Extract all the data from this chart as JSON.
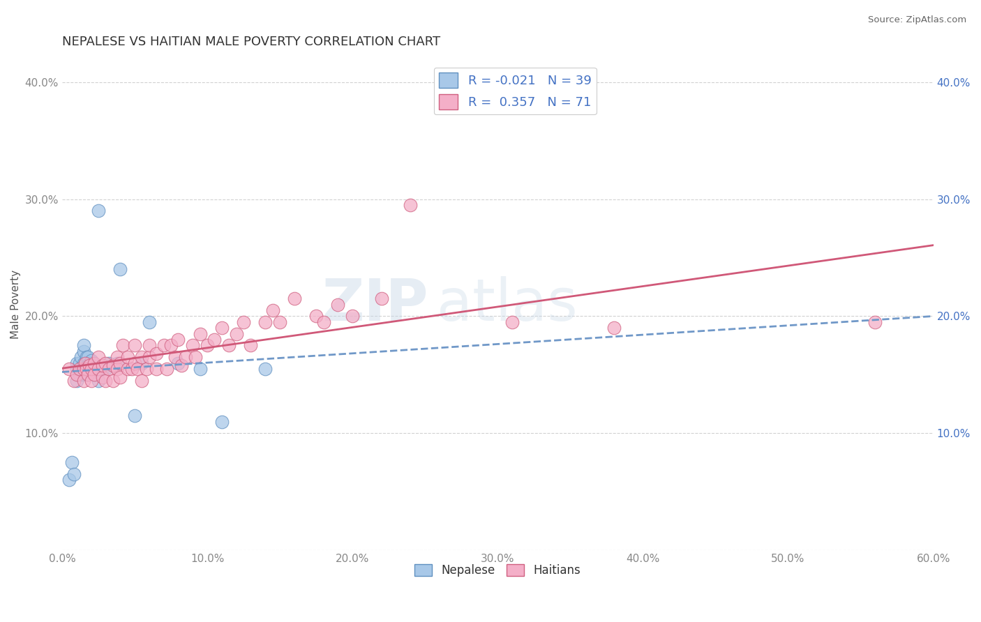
{
  "title": "NEPALESE VS HAITIAN MALE POVERTY CORRELATION CHART",
  "source": "Source: ZipAtlas.com",
  "ylabel": "Male Poverty",
  "xlim": [
    0.0,
    0.6
  ],
  "ylim": [
    0.0,
    0.42
  ],
  "x_ticks": [
    0.0,
    0.1,
    0.2,
    0.3,
    0.4,
    0.5,
    0.6
  ],
  "x_tick_labels": [
    "0.0%",
    "10.0%",
    "20.0%",
    "30.0%",
    "40.0%",
    "50.0%",
    "60.0%"
  ],
  "y_ticks": [
    0.0,
    0.1,
    0.2,
    0.3,
    0.4
  ],
  "y_tick_labels_left": [
    "",
    "10.0%",
    "20.0%",
    "30.0%",
    "40.0%"
  ],
  "y_tick_labels_right": [
    "",
    "10.0%",
    "20.0%",
    "30.0%",
    "40.0%"
  ],
  "nepalese_color": "#a8c8e8",
  "haitian_color": "#f4afc8",
  "nepalese_edge_color": "#6090c0",
  "haitian_edge_color": "#d06080",
  "nepalese_line_color": "#7098c8",
  "haitian_line_color": "#d05878",
  "r_nepalese": -0.021,
  "n_nepalese": 39,
  "r_haitian": 0.357,
  "n_haitian": 71,
  "watermark_zip": "ZIP",
  "watermark_atlas": "atlas",
  "nepalese_x": [
    0.005,
    0.007,
    0.008,
    0.01,
    0.01,
    0.01,
    0.012,
    0.012,
    0.013,
    0.015,
    0.015,
    0.015,
    0.015,
    0.015,
    0.016,
    0.016,
    0.017,
    0.017,
    0.018,
    0.018,
    0.019,
    0.02,
    0.02,
    0.022,
    0.022,
    0.025,
    0.025,
    0.028,
    0.03,
    0.032,
    0.038,
    0.04,
    0.05,
    0.055,
    0.06,
    0.08,
    0.095,
    0.11,
    0.14
  ],
  "nepalese_y": [
    0.06,
    0.075,
    0.065,
    0.145,
    0.155,
    0.16,
    0.15,
    0.16,
    0.165,
    0.15,
    0.155,
    0.16,
    0.17,
    0.175,
    0.155,
    0.16,
    0.165,
    0.15,
    0.155,
    0.165,
    0.16,
    0.158,
    0.162,
    0.15,
    0.155,
    0.145,
    0.29,
    0.155,
    0.155,
    0.16,
    0.16,
    0.24,
    0.115,
    0.16,
    0.195,
    0.16,
    0.155,
    0.11,
    0.155
  ],
  "haitian_x": [
    0.005,
    0.008,
    0.01,
    0.012,
    0.015,
    0.015,
    0.016,
    0.017,
    0.018,
    0.019,
    0.02,
    0.02,
    0.022,
    0.022,
    0.025,
    0.025,
    0.028,
    0.028,
    0.03,
    0.03,
    0.032,
    0.035,
    0.035,
    0.038,
    0.038,
    0.04,
    0.04,
    0.042,
    0.045,
    0.045,
    0.048,
    0.05,
    0.05,
    0.052,
    0.055,
    0.055,
    0.058,
    0.06,
    0.06,
    0.065,
    0.065,
    0.07,
    0.072,
    0.075,
    0.078,
    0.08,
    0.082,
    0.085,
    0.09,
    0.092,
    0.095,
    0.1,
    0.105,
    0.11,
    0.115,
    0.12,
    0.125,
    0.13,
    0.14,
    0.145,
    0.15,
    0.16,
    0.175,
    0.18,
    0.19,
    0.2,
    0.22,
    0.24,
    0.31,
    0.38,
    0.56
  ],
  "haitian_y": [
    0.155,
    0.145,
    0.15,
    0.155,
    0.145,
    0.155,
    0.16,
    0.155,
    0.15,
    0.158,
    0.145,
    0.155,
    0.16,
    0.15,
    0.155,
    0.165,
    0.148,
    0.158,
    0.145,
    0.16,
    0.155,
    0.145,
    0.158,
    0.155,
    0.165,
    0.148,
    0.16,
    0.175,
    0.155,
    0.165,
    0.155,
    0.16,
    0.175,
    0.155,
    0.145,
    0.165,
    0.155,
    0.165,
    0.175,
    0.155,
    0.168,
    0.175,
    0.155,
    0.175,
    0.165,
    0.18,
    0.158,
    0.165,
    0.175,
    0.165,
    0.185,
    0.175,
    0.18,
    0.19,
    0.175,
    0.185,
    0.195,
    0.175,
    0.195,
    0.205,
    0.195,
    0.215,
    0.2,
    0.195,
    0.21,
    0.2,
    0.215,
    0.295,
    0.195,
    0.19,
    0.195
  ]
}
